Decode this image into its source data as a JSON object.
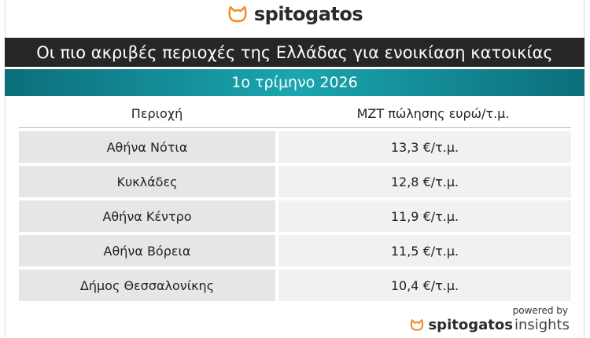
{
  "header": {
    "logo": "spitogatos",
    "title": "Οι πιο ακριβές περιοχές της Ελλάδας για ενοικίαση κατοικίας",
    "subtitle": "1ο τρίμηνο 2026"
  },
  "table": {
    "headers": [
      "Περιοχή",
      "ΜΖΤ πώλησης ευρώ/τ.μ."
    ],
    "rows": [
      [
        "Αθήνα Νότια",
        "13,3 €/τ.μ."
      ],
      [
        "Κυκλάδες",
        "12,8 €/τ.μ."
      ],
      [
        "Αθήνα Κέντρο",
        "11,9 €/τ.μ."
      ],
      [
        "Αθήνα Βόρεια",
        "11,5 €/τ.μ."
      ],
      [
        "Δήμος Θεσσαλονίκης",
        "10,4 €/τ.μ."
      ]
    ]
  },
  "footer": {
    "powered_by": "powered by",
    "brand": "spitogatos",
    "suffix": "insights"
  }
}
